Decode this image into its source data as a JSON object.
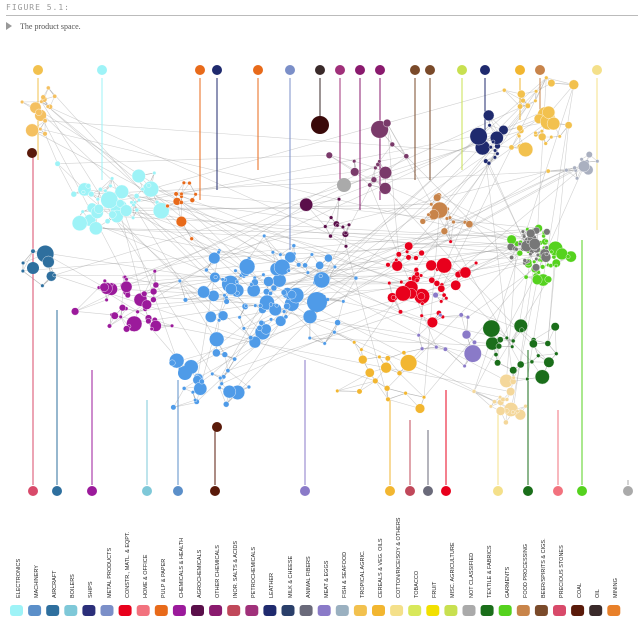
{
  "figure_label": "FIGURE 5.1:",
  "caption": "The product space.",
  "categories": [
    {
      "label": "ELECTRONICS",
      "color": "#9ef3f7",
      "icon": "laptop-icon"
    },
    {
      "label": "MACHINERY",
      "color": "#5b8fc9",
      "icon": "gears-icon"
    },
    {
      "label": "AIRCRAFT",
      "color": "#2e6f9e",
      "icon": "airplane-icon"
    },
    {
      "label": "BOILERS",
      "color": "#7ec8d8",
      "icon": "drop-icon"
    },
    {
      "label": "SHIPS",
      "color": "#2b2f7a",
      "icon": "anchor-icon"
    },
    {
      "label": "METAL PRODUCTS",
      "color": "#7b8fc8",
      "icon": "anvil-icon"
    },
    {
      "label": "CONSTR., MATL. & EQPT.",
      "color": "#e8001c",
      "icon": "house-icon"
    },
    {
      "label": "HOME & OFFICE",
      "color": "#f2727e",
      "icon": "cup-icon"
    },
    {
      "label": "PULP & PAPER",
      "color": "#e86a1a",
      "icon": "tree-icon"
    },
    {
      "label": "CHEMICALS & HEALTH",
      "color": "#9b1a9b",
      "icon": "pill-icon"
    },
    {
      "label": "AGROCHEMICALS",
      "color": "#5a0f4a",
      "icon": "bottle-icon"
    },
    {
      "label": "OTHER CHEMICALS",
      "color": "#8a1a6e",
      "icon": "flask-icon"
    },
    {
      "label": "INOR. SALTS & ACIDS",
      "color": "#c0485a",
      "icon": "square-icon"
    },
    {
      "label": "PETROCHEMICALS",
      "color": "#a0307a",
      "icon": "droplet-ring-icon"
    },
    {
      "label": "LEATHER",
      "color": "#1f2a6e",
      "icon": "hide-icon"
    },
    {
      "label": "MILK & CHEESE",
      "color": "#2a3f6a",
      "icon": "milk-can-icon"
    },
    {
      "label": "ANIMAL FIBERS",
      "color": "#6a6a7a",
      "icon": "yarn-icon"
    },
    {
      "label": "MEAT & EGGS",
      "color": "#8a7ac8",
      "icon": "cow-icon"
    },
    {
      "label": "FISH & SEAFOOD",
      "color": "#9ab0c0",
      "icon": "fish-icon"
    },
    {
      "label": "TROPICAL AGRIC.",
      "color": "#f2c14e",
      "icon": "flower-icon"
    },
    {
      "label": "CEREALS & VEG. OILS",
      "color": "#f2b630",
      "icon": "wheat-icon"
    },
    {
      "label": "COTTON/RICE/SOY & OTHERS",
      "color": "#f4e08a",
      "icon": "cotton-icon"
    },
    {
      "label": "TOBACCO",
      "color": "#d8e85a",
      "icon": "leaf-icon"
    },
    {
      "label": "FRUIT",
      "color": "#f2e000",
      "icon": "apple-icon"
    },
    {
      "label": "MISC. AGRICULTURE",
      "color": "#c8e050",
      "icon": "potato-icon"
    },
    {
      "label": "NOT CLASSIFIED",
      "color": "#aaaaaa",
      "icon": "question-icon"
    },
    {
      "label": "TEXTILE & FABRICS",
      "color": "#1a6e1a",
      "icon": "sewing-machine-icon"
    },
    {
      "label": "GARMENTS",
      "color": "#55d21e",
      "icon": "shirt-icon"
    },
    {
      "label": "FOOD PROCESSING",
      "color": "#c8844a",
      "icon": "can-icon"
    },
    {
      "label": "BEER/SPIRITS & CIGS.",
      "color": "#7a4a2a",
      "icon": "bottles-icon"
    },
    {
      "label": "PRECIOUS STONES",
      "color": "#d84a6a",
      "icon": "diamond-icon"
    },
    {
      "label": "COAL",
      "color": "#5a1a0a",
      "icon": "coal-cart-icon"
    },
    {
      "label": "OIL",
      "color": "#3a2a2a",
      "icon": "oil-rig-icon"
    },
    {
      "label": "MINING",
      "color": "#e8802a",
      "icon": "pickaxe-icon"
    }
  ]
}
